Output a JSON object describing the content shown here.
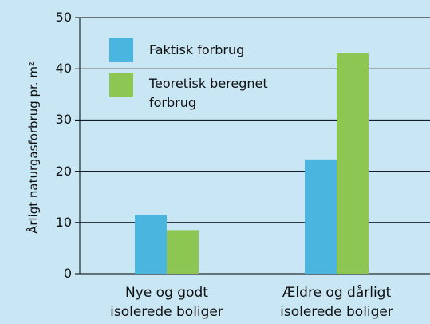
{
  "chart_data": {
    "type": "bar",
    "ylabel": "Årligt naturgasforbrug pr. m²",
    "categories": [
      "Nye og godt\nisolerede boliger",
      "Ældre og dårligt\nisolerede boliger"
    ],
    "series": [
      {
        "name": "Faktisk forbrug",
        "color": "#4ab6e0",
        "values": [
          11.5,
          22.3
        ]
      },
      {
        "name": "Teoretisk beregnet\nforbrug",
        "color": "#8dc652",
        "values": [
          8.5,
          43
        ]
      }
    ],
    "ylim": [
      0,
      50
    ],
    "yticks": [
      0,
      10,
      20,
      30,
      40,
      50
    ],
    "grid": true
  }
}
